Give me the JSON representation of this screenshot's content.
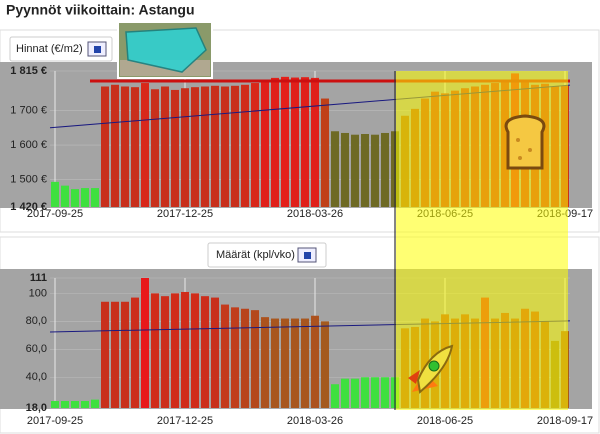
{
  "title": "Pyynnöt viikoittain: Astangu",
  "chart_data": [
    {
      "type": "bar",
      "tab_label": "Hinnat (€/m2)",
      "categories": [
        "2017-09-25",
        null,
        null,
        null,
        null,
        null,
        null,
        null,
        null,
        null,
        null,
        null,
        null,
        "2017-12-25",
        null,
        null,
        null,
        null,
        null,
        null,
        null,
        null,
        null,
        null,
        null,
        null,
        "2018-03-26",
        null,
        null,
        null,
        null,
        null,
        null,
        null,
        null,
        null,
        null,
        null,
        null,
        "2018-06-25",
        null,
        null,
        null,
        null,
        null,
        null,
        null,
        null,
        null,
        null,
        null,
        "2018-09-17"
      ],
      "values": [
        1493,
        1482,
        1472,
        1475,
        1475,
        1770,
        1775,
        1770,
        1768,
        1780,
        1762,
        1770,
        1760,
        1765,
        1768,
        1770,
        1772,
        1770,
        1772,
        1775,
        1780,
        1790,
        1795,
        1798,
        1796,
        1797,
        1795,
        1735,
        1640,
        1635,
        1630,
        1632,
        1630,
        1635,
        1640,
        1685,
        1705,
        1735,
        1755,
        1750,
        1758,
        1765,
        1770,
        1775,
        1780,
        1785,
        1808,
        1785,
        1775,
        1778,
        1770,
        1772
      ],
      "colors": [
        "#3fe03f",
        "#3fe03f",
        "#3fe03f",
        "#3fe03f",
        "#3fe03f",
        "#c8301c",
        "#c8301c",
        "#c8301c",
        "#c8301c",
        "#d8281a",
        "#c8301c",
        "#c8301c",
        "#c8301c",
        "#c8301c",
        "#c8301c",
        "#c8301c",
        "#c8301c",
        "#c8301c",
        "#c8301c",
        "#d02c1a",
        "#d8281a",
        "#e0201a",
        "#e0201a",
        "#e4201a",
        "#e0201a",
        "#e0201a",
        "#e0201a",
        "#c04018",
        "#6e6a24",
        "#6e6a24",
        "#6e6a24",
        "#6e6a24",
        "#6e6a24",
        "#6e6a24",
        "#6e6a24",
        "#a85a18",
        "#b44c16",
        "#c03c18",
        "#c8341a",
        "#c8341a",
        "#c8341a",
        "#c8301c",
        "#c8301c",
        "#cc2e1c",
        "#cc2e1c",
        "#d02c1a",
        "#e0201a",
        "#d02c1a",
        "#cc2e1c",
        "#cc2e1c",
        "#c8301c",
        "#c8301c"
      ],
      "ylim": [
        1420,
        1815
      ],
      "yticks": [
        {
          "value": 1815,
          "label": "1 815 €"
        },
        {
          "value": 1700,
          "label": "1 700 €"
        },
        {
          "value": 1600,
          "label": "1 600 €"
        },
        {
          "value": 1500,
          "label": "1 500 €"
        },
        {
          "value": 1420,
          "label": "1 420 €"
        }
      ],
      "trend_line": [
        1650,
        1774
      ],
      "trend_color": "#1a1a80",
      "max_line": 1786,
      "max_line_color": "#cc1010",
      "grid": true
    },
    {
      "type": "bar",
      "tab_label": "Määrät (kpl/vko)",
      "categories": [
        "2017-09-25",
        null,
        null,
        null,
        null,
        null,
        null,
        null,
        null,
        null,
        null,
        null,
        null,
        "2017-12-25",
        null,
        null,
        null,
        null,
        null,
        null,
        null,
        null,
        null,
        null,
        null,
        null,
        "2018-03-26",
        null,
        null,
        null,
        null,
        null,
        null,
        null,
        null,
        null,
        null,
        null,
        null,
        "2018-06-25",
        null,
        null,
        null,
        null,
        null,
        null,
        null,
        null,
        null,
        null,
        null,
        "2018-09-17"
      ],
      "values": [
        23,
        23,
        23,
        23,
        24,
        94,
        94,
        94,
        97,
        111,
        100,
        98,
        100,
        101,
        100,
        98,
        97,
        92,
        90,
        89,
        88,
        83,
        82,
        82,
        82,
        82,
        84,
        80,
        35,
        39,
        39,
        40,
        40,
        40,
        40,
        75,
        76,
        82,
        80,
        85,
        82,
        85,
        82,
        97,
        82,
        86,
        82,
        89,
        87,
        80,
        66,
        73
      ],
      "colors": [
        "#3fe03f",
        "#3fe03f",
        "#3fe03f",
        "#3fe03f",
        "#3fe03f",
        "#c8301c",
        "#c8301c",
        "#c8301c",
        "#cc2e1c",
        "#e8181a",
        "#d02c1a",
        "#cc2e1c",
        "#d02c1a",
        "#d02c1a",
        "#d02c1a",
        "#cc2e1c",
        "#c8301c",
        "#c43a1c",
        "#c03e1c",
        "#b8441c",
        "#b4481c",
        "#ac521e",
        "#a8561e",
        "#a8561e",
        "#a8561e",
        "#a8561e",
        "#ac521e",
        "#a45a1e",
        "#3fe03f",
        "#3fe03f",
        "#3fe03f",
        "#3fe03f",
        "#3fe03f",
        "#3fe03f",
        "#3fe03f",
        "#b05418",
        "#b05418",
        "#b44c16",
        "#b05418",
        "#b84a16",
        "#b44c16",
        "#b84a16",
        "#b44c16",
        "#d8281a",
        "#b44c16",
        "#bc4616",
        "#b44c16",
        "#c03e18",
        "#bc4616",
        "#b05418",
        "#907020",
        "#a85a18"
      ],
      "ylim": [
        18,
        111
      ],
      "yticks": [
        111,
        100,
        {
          "value": 80,
          "label": "80,0"
        },
        {
          "value": 60,
          "label": "60,0"
        },
        {
          "value": 40,
          "label": "40,0"
        },
        {
          "value": 18,
          "label": "18,0"
        }
      ],
      "trend_line": [
        72.4,
        80.3
      ],
      "trend_color": "#1a1a80",
      "grid": true
    }
  ]
}
